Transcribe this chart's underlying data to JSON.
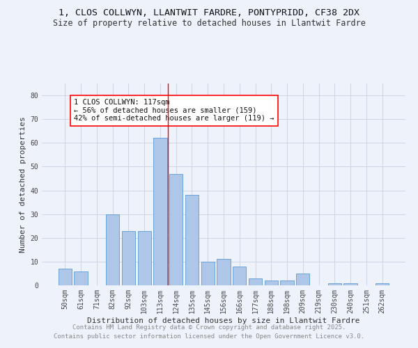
{
  "title1": "1, CLOS COLLWYN, LLANTWIT FARDRE, PONTYPRIDD, CF38 2DX",
  "title2": "Size of property relative to detached houses in Llantwit Fardre",
  "categories": [
    "50sqm",
    "61sqm",
    "71sqm",
    "82sqm",
    "92sqm",
    "103sqm",
    "113sqm",
    "124sqm",
    "135sqm",
    "145sqm",
    "156sqm",
    "166sqm",
    "177sqm",
    "188sqm",
    "198sqm",
    "209sqm",
    "219sqm",
    "230sqm",
    "240sqm",
    "251sqm",
    "262sqm"
  ],
  "values": [
    7,
    6,
    0,
    30,
    23,
    23,
    62,
    47,
    38,
    10,
    11,
    8,
    3,
    2,
    2,
    5,
    0,
    1,
    1,
    0,
    1
  ],
  "bar_color": "#aec6e8",
  "bar_edge_color": "#5b9bd5",
  "bg_color": "#eef2fb",
  "grid_color": "#c8d0e0",
  "vline_x": 6.5,
  "vline_color": "red",
  "annotation_text": "1 CLOS COLLWYN: 117sqm\n← 56% of detached houses are smaller (159)\n42% of semi-detached houses are larger (119) →",
  "annotation_box_color": "white",
  "annotation_border_color": "red",
  "xlabel": "Distribution of detached houses by size in Llantwit Fardre",
  "ylabel": "Number of detached properties",
  "ylim": [
    0,
    85
  ],
  "yticks": [
    0,
    10,
    20,
    30,
    40,
    50,
    60,
    70,
    80
  ],
  "footer1": "Contains HM Land Registry data © Crown copyright and database right 2025.",
  "footer2": "Contains public sector information licensed under the Open Government Licence v3.0.",
  "footer_color": "#888888",
  "title_fontsize": 9.5,
  "subtitle_fontsize": 8.5,
  "axis_label_fontsize": 8,
  "tick_fontsize": 7,
  "footer_fontsize": 6.5,
  "annotation_fontsize": 7.5
}
